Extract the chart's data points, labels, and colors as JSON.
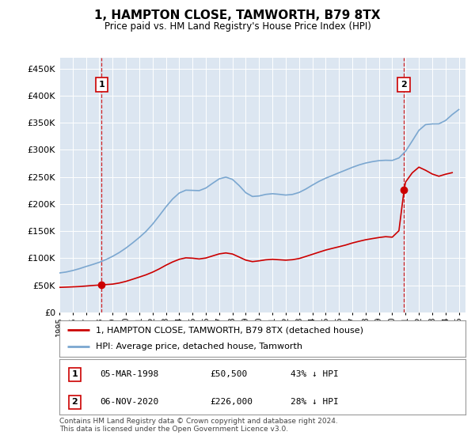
{
  "title": "1, HAMPTON CLOSE, TAMWORTH, B79 8TX",
  "subtitle": "Price paid vs. HM Land Registry's House Price Index (HPI)",
  "fig_bg_color": "#ffffff",
  "plot_bg_color": "#dce6f1",
  "legend_line1": "1, HAMPTON CLOSE, TAMWORTH, B79 8TX (detached house)",
  "legend_line2": "HPI: Average price, detached house, Tamworth",
  "sale1_date": "05-MAR-1998",
  "sale1_price": "£50,500",
  "sale1_hpi": "43% ↓ HPI",
  "sale1_year": 1998.17,
  "sale1_value": 50500,
  "sale2_date": "06-NOV-2020",
  "sale2_price": "£226,000",
  "sale2_hpi": "28% ↓ HPI",
  "sale2_year": 2020.85,
  "sale2_value": 226000,
  "footer": "Contains HM Land Registry data © Crown copyright and database right 2024.\nThis data is licensed under the Open Government Licence v3.0.",
  "red_color": "#cc0000",
  "blue_color": "#7ba7d0",
  "ylim_max": 470000,
  "ylim_min": 0,
  "xlim_min": 1995.0,
  "xlim_max": 2025.5,
  "hpi_years": [
    1995.0,
    1995.5,
    1996.0,
    1996.5,
    1997.0,
    1997.5,
    1998.0,
    1998.5,
    1999.0,
    1999.5,
    2000.0,
    2000.5,
    2001.0,
    2001.5,
    2002.0,
    2002.5,
    2003.0,
    2003.5,
    2004.0,
    2004.5,
    2005.0,
    2005.5,
    2006.0,
    2006.5,
    2007.0,
    2007.5,
    2008.0,
    2008.5,
    2009.0,
    2009.5,
    2010.0,
    2010.5,
    2011.0,
    2011.5,
    2012.0,
    2012.5,
    2013.0,
    2013.5,
    2014.0,
    2014.5,
    2015.0,
    2015.5,
    2016.0,
    2016.5,
    2017.0,
    2017.5,
    2018.0,
    2018.5,
    2019.0,
    2019.5,
    2020.0,
    2020.5,
    2021.0,
    2021.5,
    2022.0,
    2022.5,
    2023.0,
    2023.5,
    2024.0,
    2024.5,
    2025.0
  ],
  "hpi_values": [
    72000,
    74000,
    77000,
    80000,
    85000,
    88000,
    92000,
    97000,
    103000,
    110000,
    118000,
    128000,
    138000,
    148000,
    162000,
    178000,
    195000,
    210000,
    222000,
    228000,
    225000,
    222000,
    228000,
    238000,
    248000,
    252000,
    248000,
    235000,
    218000,
    210000,
    215000,
    218000,
    220000,
    218000,
    215000,
    217000,
    220000,
    227000,
    235000,
    242000,
    248000,
    252000,
    258000,
    262000,
    268000,
    272000,
    276000,
    278000,
    280000,
    282000,
    278000,
    282000,
    295000,
    315000,
    340000,
    350000,
    348000,
    345000,
    352000,
    365000,
    378000
  ],
  "red_years": [
    1995.0,
    1995.5,
    1996.0,
    1996.5,
    1997.0,
    1997.5,
    1998.17,
    1999.0,
    1999.5,
    2000.0,
    2000.5,
    2001.0,
    2001.5,
    2002.0,
    2002.5,
    2003.0,
    2003.5,
    2004.0,
    2004.5,
    2005.0,
    2005.5,
    2006.0,
    2006.5,
    2007.0,
    2007.5,
    2008.0,
    2008.5,
    2009.0,
    2009.5,
    2010.0,
    2010.5,
    2011.0,
    2011.5,
    2012.0,
    2012.5,
    2013.0,
    2013.5,
    2014.0,
    2014.5,
    2015.0,
    2015.5,
    2016.0,
    2016.5,
    2017.0,
    2017.5,
    2018.0,
    2018.5,
    2019.0,
    2019.5,
    2020.0,
    2020.5,
    2020.85,
    2021.0,
    2021.5,
    2022.0,
    2022.5,
    2023.0,
    2023.5,
    2024.0,
    2024.5
  ],
  "red_values": [
    46000,
    46500,
    47000,
    47500,
    48500,
    49500,
    50500,
    52000,
    54000,
    57000,
    61000,
    65000,
    69000,
    74000,
    80000,
    87000,
    93000,
    98000,
    101000,
    100000,
    98000,
    100000,
    104000,
    108000,
    110000,
    108000,
    102000,
    96000,
    93000,
    95000,
    97000,
    98000,
    97000,
    96000,
    97000,
    99000,
    103000,
    107000,
    111000,
    115000,
    118000,
    121000,
    124000,
    128000,
    131000,
    134000,
    136000,
    138000,
    140000,
    138000,
    142000,
    226000,
    240000,
    258000,
    270000,
    262000,
    255000,
    250000,
    255000,
    258000
  ]
}
